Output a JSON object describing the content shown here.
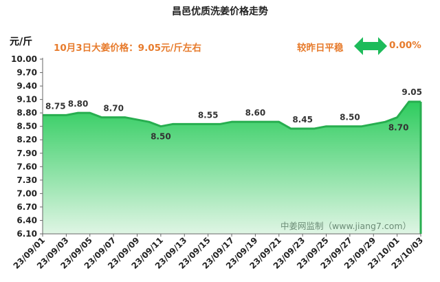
{
  "chart_data": {
    "type": "area",
    "title": "昌邑优质洗姜价格走势",
    "ylabel": "元/斤",
    "ylim": [
      6.1,
      10.0
    ],
    "y_ticks": [
      "10.00",
      "9.70",
      "9.40",
      "9.10",
      "8.80",
      "8.50",
      "8.20",
      "7.90",
      "7.60",
      "7.30",
      "7.00",
      "6.70",
      "6.40",
      "6.10"
    ],
    "x": [
      "23/09/01",
      "23/09/02",
      "23/09/03",
      "23/09/04",
      "23/09/05",
      "23/09/06",
      "23/09/07",
      "23/09/08",
      "23/09/09",
      "23/09/10",
      "23/09/11",
      "23/09/12",
      "23/09/13",
      "23/09/14",
      "23/09/15",
      "23/09/16",
      "23/09/17",
      "23/09/18",
      "23/09/19",
      "23/09/20",
      "23/09/21",
      "23/09/22",
      "23/09/23",
      "23/09/24",
      "23/09/25",
      "23/09/26",
      "23/09/27",
      "23/09/28",
      "23/09/29",
      "23/09/30",
      "23/10/01",
      "23/10/02",
      "23/10/03"
    ],
    "x_tick_labels": [
      "23/09/01",
      "23/09/03",
      "23/09/05",
      "23/09/07",
      "23/09/09",
      "23/09/11",
      "23/09/13",
      "23/09/15",
      "23/09/17",
      "23/09/19",
      "23/09/21",
      "23/09/23",
      "23/09/25",
      "23/09/27",
      "23/09/29",
      "23/10/01",
      "23/10/03"
    ],
    "values": [
      8.75,
      8.75,
      8.75,
      8.8,
      8.8,
      8.7,
      8.7,
      8.7,
      8.65,
      8.6,
      8.5,
      8.55,
      8.55,
      8.55,
      8.55,
      8.55,
      8.6,
      8.6,
      8.6,
      8.6,
      8.6,
      8.45,
      8.45,
      8.45,
      8.5,
      8.5,
      8.5,
      8.5,
      8.55,
      8.6,
      8.7,
      9.05,
      9.05
    ],
    "data_labels": [
      {
        "index": 0,
        "text": "8.75"
      },
      {
        "index": 3,
        "text": "8.80"
      },
      {
        "index": 6,
        "text": "8.70"
      },
      {
        "index": 10,
        "text": "8.50"
      },
      {
        "index": 14,
        "text": "8.55"
      },
      {
        "index": 18,
        "text": "8.60"
      },
      {
        "index": 22,
        "text": "8.45"
      },
      {
        "index": 26,
        "text": "8.50"
      },
      {
        "index": 30,
        "text": "8.70"
      },
      {
        "index": 32,
        "text": "9.05"
      }
    ],
    "colors": {
      "line": "#27ae4f",
      "fill_top": "#2ecc5e",
      "fill_bottom": "#dff5e4",
      "accent_text": "#e77b2c",
      "arrow": "#1dbb5a"
    }
  },
  "header": {
    "title": "昌邑优质洗姜价格走势",
    "unit": "元/斤",
    "price_text": "10月3日大姜价格：9.05元/斤左右",
    "compare_label": "较昨日平稳",
    "compare_value": "0.00%"
  },
  "watermark": "中姜网监制（www.jiang7.com）"
}
